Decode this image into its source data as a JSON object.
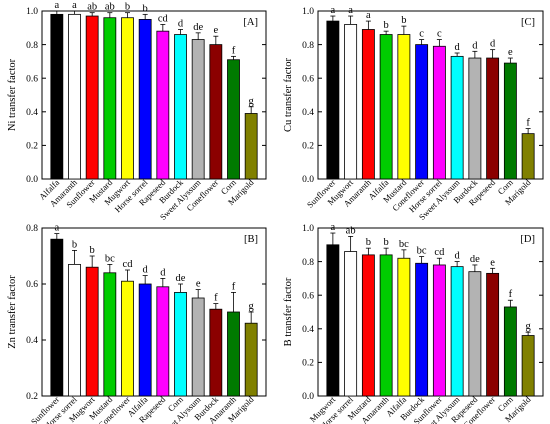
{
  "chart_data": [
    {
      "type": "bar",
      "panel": "[A]",
      "ylabel": "Ni transfer factor",
      "ylim": [
        0,
        1.0
      ],
      "yticks": [
        "0.0",
        "0.2",
        "0.4",
        "0.6",
        "0.8",
        "1.0"
      ],
      "categories": [
        "Alfalfa",
        "Amaranth",
        "Sunflower",
        "Mustard",
        "Mugwort",
        "Horse sorrel",
        "Rapeseed",
        "Burdock",
        "Sweet Alyssum",
        "Coneflower",
        "Corn",
        "Marigold"
      ],
      "values": [
        0.98,
        0.98,
        0.97,
        0.96,
        0.96,
        0.95,
        0.88,
        0.86,
        0.83,
        0.8,
        0.71,
        0.39
      ],
      "errors": [
        0.02,
        0.02,
        0.02,
        0.03,
        0.03,
        0.03,
        0.04,
        0.03,
        0.04,
        0.05,
        0.02,
        0.04
      ],
      "letters": [
        "a",
        "a",
        "ab",
        "ab",
        "b",
        "b",
        "cd",
        "d",
        "de",
        "e",
        "f",
        "g"
      ],
      "colors": [
        "#000000",
        "#ffffff",
        "#ff0000",
        "#00cc00",
        "#ffff00",
        "#0000ff",
        "#ff00ff",
        "#00ffff",
        "#b3b3b3",
        "#8b0000",
        "#007a00",
        "#808000"
      ]
    },
    {
      "type": "bar",
      "panel": "[C]",
      "ylabel": "Cu transfer factor",
      "ylim": [
        0,
        1.0
      ],
      "yticks": [
        "0.0",
        "0.2",
        "0.4",
        "0.6",
        "0.8",
        "1.0"
      ],
      "categories": [
        "Sunflower",
        "Mugwort",
        "Amaranth",
        "Alfalfa",
        "Mustard",
        "Coneflower",
        "Horse sorrel",
        "Sweet Alyssum",
        "Burdock",
        "Rapeseed",
        "Corn",
        "Marigold"
      ],
      "values": [
        0.94,
        0.92,
        0.89,
        0.86,
        0.86,
        0.8,
        0.79,
        0.73,
        0.72,
        0.72,
        0.69,
        0.27
      ],
      "errors": [
        0.03,
        0.05,
        0.05,
        0.02,
        0.05,
        0.03,
        0.04,
        0.02,
        0.04,
        0.05,
        0.03,
        0.03
      ],
      "letters": [
        "a",
        "a",
        "a",
        "b",
        "b",
        "c",
        "c",
        "d",
        "d",
        "d",
        "e",
        "f"
      ],
      "colors": [
        "#000000",
        "#ffffff",
        "#ff0000",
        "#00cc00",
        "#ffff00",
        "#0000ff",
        "#ff00ff",
        "#00ffff",
        "#b3b3b3",
        "#8b0000",
        "#007a00",
        "#808000"
      ]
    },
    {
      "type": "bar",
      "panel": "[B]",
      "ylabel": "Zn transfer factor",
      "ylim": [
        0.2,
        0.8
      ],
      "yticks": [
        "0.2",
        "0.4",
        "0.6",
        "0.8"
      ],
      "categories": [
        "Sunflower",
        "Horse sorrel",
        "Mugwort",
        "Mustard",
        "Coneflower",
        "Alfalfa",
        "Rapeseed",
        "Corn",
        "Sweet Alyssum",
        "Burdock",
        "Amaranth",
        "Marigold"
      ],
      "values": [
        0.76,
        0.67,
        0.66,
        0.64,
        0.61,
        0.6,
        0.59,
        0.57,
        0.55,
        0.51,
        0.5,
        0.46
      ],
      "errors": [
        0.02,
        0.05,
        0.04,
        0.03,
        0.04,
        0.03,
        0.03,
        0.03,
        0.03,
        0.02,
        0.07,
        0.04
      ],
      "letters": [
        "a",
        "b",
        "b",
        "bc",
        "cd",
        "d",
        "d",
        "de",
        "e",
        "f",
        "f",
        "g"
      ],
      "colors": [
        "#000000",
        "#ffffff",
        "#ff0000",
        "#00cc00",
        "#ffff00",
        "#0000ff",
        "#ff00ff",
        "#00ffff",
        "#b3b3b3",
        "#8b0000",
        "#007a00",
        "#808000"
      ]
    },
    {
      "type": "bar",
      "panel": "[D]",
      "ylabel": "B transfer factor",
      "ylim": [
        0,
        1.0
      ],
      "yticks": [
        "0.0",
        "0.2",
        "0.4",
        "0.6",
        "0.8",
        "1.0"
      ],
      "categories": [
        "Mugwort",
        "Horse sorrel",
        "Mustard",
        "Amaranth",
        "Alfalfa",
        "Burdock",
        "Sunflower",
        "Sweet Alyssum",
        "Rapeseed",
        "Coneflower",
        "Corn",
        "Marigold"
      ],
      "values": [
        0.9,
        0.86,
        0.84,
        0.84,
        0.82,
        0.79,
        0.78,
        0.77,
        0.74,
        0.73,
        0.53,
        0.36
      ],
      "errors": [
        0.07,
        0.09,
        0.04,
        0.04,
        0.05,
        0.04,
        0.04,
        0.03,
        0.04,
        0.03,
        0.04,
        0.02
      ],
      "letters": [
        "a",
        "ab",
        "b",
        "b",
        "bc",
        "bc",
        "cd",
        "d",
        "de",
        "e",
        "f",
        "g"
      ],
      "colors": [
        "#000000",
        "#ffffff",
        "#ff0000",
        "#00cc00",
        "#ffff00",
        "#0000ff",
        "#ff00ff",
        "#00ffff",
        "#b3b3b3",
        "#8b0000",
        "#007a00",
        "#808000"
      ]
    }
  ]
}
